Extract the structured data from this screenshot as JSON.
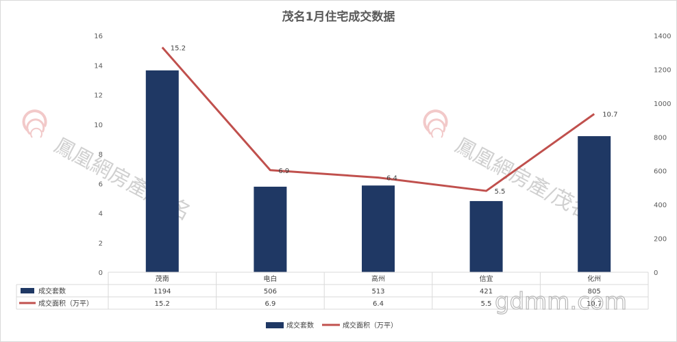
{
  "chart_data": {
    "type": "bar",
    "title": "茂名1月住宅成交数据",
    "categories": [
      "茂南",
      "电白",
      "高州",
      "信宜",
      "化州"
    ],
    "series": [
      {
        "name": "成交套数",
        "type": "bar",
        "axis": "right",
        "color": "#1f3864",
        "values": [
          1194,
          506,
          513,
          421,
          805
        ]
      },
      {
        "name": "成交面积（万平）",
        "type": "line",
        "axis": "left",
        "color": "#c0504d",
        "values": [
          15.2,
          6.9,
          6.4,
          5.5,
          10.7
        ]
      }
    ],
    "left_axis": {
      "ticks": [
        "0",
        "2",
        "4",
        "6",
        "8",
        "10",
        "12",
        "14",
        "16"
      ],
      "ylim": [
        0,
        16
      ]
    },
    "right_axis": {
      "ticks": [
        "0",
        "200",
        "400",
        "600",
        "800",
        "1000",
        "1200",
        "1400"
      ],
      "ylim": [
        0,
        1400
      ]
    },
    "data_table": true,
    "legend_position": "bottom",
    "grid": false
  },
  "watermark": {
    "brand": "鳳凰網房產",
    "city": "茂名",
    "site": "gdmm.com"
  }
}
